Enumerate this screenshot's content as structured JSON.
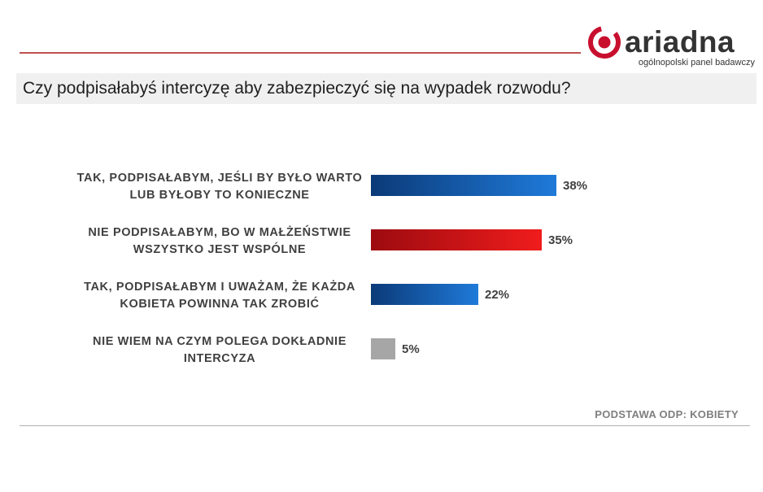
{
  "brand": {
    "name": "ariadna",
    "tagline": "ogólnopolski panel badawczy",
    "color": "#c8102e"
  },
  "question": "Czy podpisałabyś intercyzę aby zabezpieczyć się na wypadek rozwodu?",
  "footnote": "PODSTAWA ODP: KOBIETY",
  "chart_data": {
    "type": "bar",
    "orientation": "horizontal",
    "categories": [
      [
        "TAK, PODPISAŁABYM, JEŚLI BY BYŁO WARTO",
        "LUB BYŁOBY TO KONIECZNE"
      ],
      [
        "NIE PODPISAŁABYM, BO W MAŁŻEŃSTWIE",
        "WSZYSTKO JEST WSPÓLNE"
      ],
      [
        "TAK, PODPISAŁABYM I UWAŻAM, ŻE KAŻDA",
        "KOBIETA POWINNA TAK ZROBIĆ"
      ],
      [
        "NIE WIEM NA CZYM POLEGA DOKŁADNIE",
        "INTERCYZA"
      ]
    ],
    "values": [
      38,
      35,
      22,
      5
    ],
    "value_labels": [
      "38%",
      "35%",
      "22%",
      "5%"
    ],
    "colors": [
      [
        "#0b3a78",
        "#1f7ad9"
      ],
      [
        "#9c0b10",
        "#f01c1c"
      ],
      [
        "#0b3a78",
        "#1f7ad9"
      ],
      [
        "#a6a6a6",
        "#a6a6a6"
      ]
    ],
    "xlim": [
      0,
      100
    ],
    "grid": false,
    "legend": "none"
  }
}
